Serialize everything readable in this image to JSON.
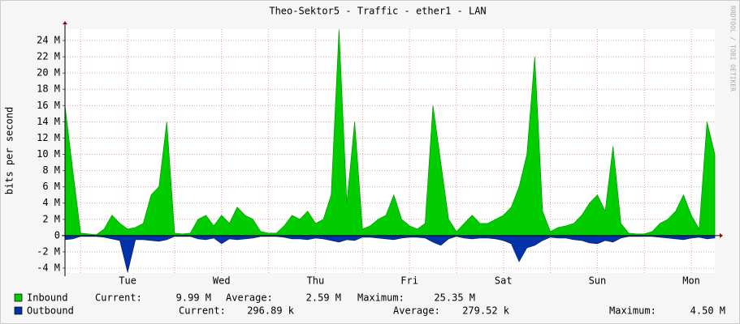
{
  "chart_data": {
    "type": "area",
    "title": "Theo-Sektor5 - Traffic - ether1 - LAN",
    "y_label": "bits per second",
    "watermark": "RRDTOOL / TOBI OETIKER",
    "categories": [
      null,
      null,
      null,
      null,
      null,
      null,
      null,
      null,
      "Tue",
      null,
      null,
      null,
      null,
      null,
      null,
      null,
      null,
      null,
      null,
      null,
      "Wed",
      null,
      null,
      null,
      null,
      null,
      null,
      null,
      null,
      null,
      null,
      null,
      "Thu",
      null,
      null,
      null,
      null,
      null,
      null,
      null,
      null,
      null,
      null,
      null,
      "Fri",
      null,
      null,
      null,
      null,
      null,
      null,
      null,
      null,
      null,
      null,
      null,
      "Sat",
      null,
      null,
      null,
      null,
      null,
      null,
      null,
      null,
      null,
      null,
      null,
      "Sun",
      null,
      null,
      null,
      null,
      null,
      null,
      null,
      null,
      null,
      null,
      null,
      "Mon",
      null,
      null,
      null
    ],
    "series": [
      {
        "name": "Inbound",
        "color": "#00cc00",
        "edge": "#009900",
        "values": [
          16,
          8,
          0.3,
          0.2,
          0.1,
          0.8,
          2.5,
          1.5,
          0.8,
          1,
          1.5,
          5,
          6,
          14,
          0.3,
          0.2,
          0.3,
          2,
          2.5,
          1.2,
          2.5,
          1.5,
          3.5,
          2.5,
          2,
          0.5,
          0.3,
          0.3,
          1.2,
          2.5,
          2,
          3,
          1.5,
          2,
          5,
          25.35,
          4,
          14,
          0.8,
          1.2,
          2,
          2.5,
          5,
          2,
          1.2,
          0.8,
          1.5,
          16,
          9,
          2,
          0.5,
          1.5,
          2.5,
          1.5,
          1.5,
          2,
          2.5,
          3.5,
          6,
          10,
          22,
          3,
          0.5,
          1,
          1.2,
          1.5,
          2.5,
          4,
          5,
          3,
          11,
          1.5,
          0.3,
          0.2,
          0.2,
          0.5,
          1.5,
          2,
          3,
          5,
          2.5,
          0.8,
          14,
          9.99
        ]
      },
      {
        "name": "Outbound",
        "color": "#0033aa",
        "edge": "#002288",
        "values": [
          -0.5,
          -0.4,
          -0.1,
          -0.1,
          -0.1,
          -0.2,
          -0.4,
          -0.6,
          -4.5,
          -0.5,
          -0.5,
          -0.6,
          -0.7,
          -0.5,
          -0.1,
          -0.1,
          -0.1,
          -0.4,
          -0.5,
          -0.3,
          -1,
          -0.4,
          -0.5,
          -0.4,
          -0.3,
          -0.1,
          -0.1,
          -0.1,
          -0.2,
          -0.4,
          -0.4,
          -0.5,
          -0.3,
          -0.4,
          -0.6,
          -0.8,
          -0.5,
          -0.6,
          -0.2,
          -0.2,
          -0.3,
          -0.4,
          -0.5,
          -0.3,
          -0.2,
          -0.2,
          -0.3,
          -0.8,
          -1.2,
          -0.4,
          -0.1,
          -0.3,
          -0.4,
          -0.3,
          -0.3,
          -0.4,
          -0.6,
          -1,
          -3.2,
          -1.5,
          -1.2,
          -0.6,
          -0.2,
          -0.3,
          -0.3,
          -0.5,
          -0.6,
          -0.9,
          -1,
          -0.6,
          -0.8,
          -0.3,
          -0.1,
          -0.1,
          -0.1,
          -0.1,
          -0.2,
          -0.3,
          -0.4,
          -0.5,
          -0.3,
          -0.2,
          -0.4,
          -0.3
        ]
      }
    ],
    "stats": [
      [
        "Current:",
        "9.99 M",
        "Average:",
        "2.59 M",
        "Maximum:",
        "25.35 M"
      ],
      [
        "Current:",
        "296.89 k",
        "Average:",
        "279.52 k",
        "Maximum:",
        "4.50 M"
      ]
    ],
    "ylim": [
      -4.6,
      25.4
    ],
    "yticks": [
      {
        "value": -4,
        "label": "-4 M"
      },
      {
        "value": -2,
        "label": "-2 M"
      },
      {
        "value": 0,
        "label": "0"
      },
      {
        "value": 2,
        "label": "2 M"
      },
      {
        "value": 4,
        "label": "4 M"
      },
      {
        "value": 6,
        "label": "6 M"
      },
      {
        "value": 8,
        "label": "8 M"
      },
      {
        "value": 10,
        "label": "10 M"
      },
      {
        "value": 12,
        "label": "12 M"
      },
      {
        "value": 14,
        "label": "14 M"
      },
      {
        "value": 16,
        "label": "16 M"
      },
      {
        "value": 18,
        "label": "18 M"
      },
      {
        "value": 20,
        "label": "20 M"
      },
      {
        "value": 22,
        "label": "22 M"
      },
      {
        "value": 24,
        "label": "24 M"
      }
    ],
    "grid": true
  }
}
